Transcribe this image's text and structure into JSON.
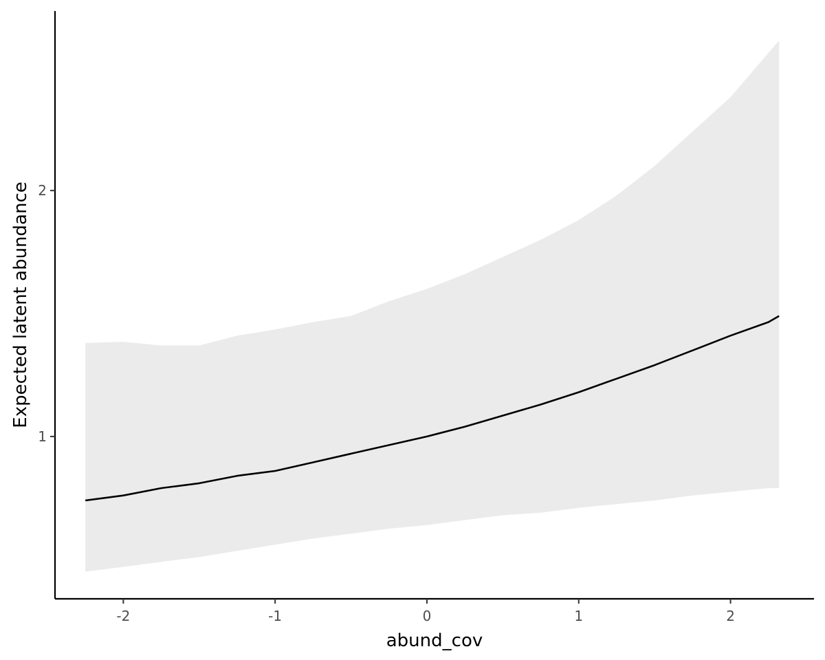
{
  "chart_data": {
    "type": "line",
    "title": "",
    "xlabel": "abund_cov",
    "ylabel": "Expected latent abundance",
    "xlim": [
      -2.45,
      2.55
    ],
    "ylim": [
      0.34,
      2.73
    ],
    "x_ticks": [
      -2,
      -1,
      0,
      1,
      2
    ],
    "x_tick_labels": [
      "-2",
      "-1",
      "0",
      "1",
      "2"
    ],
    "y_ticks": [
      1,
      2
    ],
    "y_tick_labels": [
      "1",
      "2"
    ],
    "grid": false,
    "legend": "none",
    "line_color": "#000000",
    "ribbon_color": "#ebebeb",
    "x": [
      -2.25,
      -2.0,
      -1.75,
      -1.5,
      -1.25,
      -1.0,
      -0.75,
      -0.5,
      -0.25,
      0.0,
      0.25,
      0.5,
      0.75,
      1.0,
      1.25,
      1.5,
      1.75,
      2.0,
      2.25,
      2.32
    ],
    "mean": [
      0.74,
      0.76,
      0.79,
      0.81,
      0.84,
      0.86,
      0.895,
      0.93,
      0.965,
      1.0,
      1.04,
      1.085,
      1.13,
      1.18,
      1.235,
      1.29,
      1.35,
      1.41,
      1.465,
      1.49
    ],
    "lower": [
      0.45,
      0.47,
      0.49,
      0.51,
      0.535,
      0.56,
      0.585,
      0.605,
      0.625,
      0.64,
      0.66,
      0.68,
      0.69,
      0.71,
      0.725,
      0.74,
      0.76,
      0.775,
      0.79,
      0.79
    ],
    "upper": [
      1.38,
      1.385,
      1.37,
      1.37,
      1.41,
      1.435,
      1.465,
      1.49,
      1.55,
      1.6,
      1.66,
      1.73,
      1.8,
      1.88,
      1.98,
      2.1,
      2.24,
      2.38,
      2.56,
      2.61
    ]
  }
}
